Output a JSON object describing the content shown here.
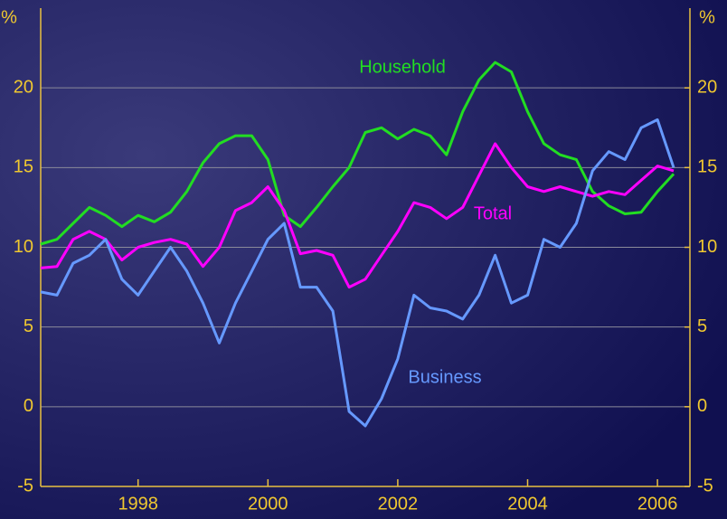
{
  "chart_data": {
    "type": "line",
    "ylabel": "%",
    "y2label": "%",
    "x": [
      1996.5,
      1996.75,
      1997,
      1997.25,
      1997.5,
      1997.75,
      1998,
      1998.25,
      1998.5,
      1998.75,
      1999,
      1999.25,
      1999.5,
      1999.75,
      2000,
      2000.25,
      2000.5,
      2000.75,
      2001,
      2001.25,
      2001.5,
      2001.75,
      2002,
      2002.25,
      2002.5,
      2002.75,
      2003,
      2003.25,
      2003.5,
      2003.75,
      2004,
      2004.25,
      2004.5,
      2004.75,
      2005,
      2005.25,
      2005.5,
      2005.75,
      2006,
      2006.25
    ],
    "series": [
      {
        "name": "Household",
        "color": "#22dd22",
        "values": [
          10.2,
          10.5,
          11.5,
          12.5,
          12.0,
          11.3,
          12.0,
          11.6,
          12.2,
          13.5,
          15.3,
          16.5,
          17.0,
          17.0,
          15.5,
          12.0,
          11.3,
          12.5,
          13.8,
          15.0,
          17.2,
          17.5,
          16.8,
          17.4,
          17.0,
          15.8,
          18.5,
          20.5,
          21.6,
          21.0,
          18.5,
          16.5,
          15.8,
          15.5,
          13.5,
          12.6,
          12.1,
          12.2,
          13.5,
          14.6
        ]
      },
      {
        "name": "Total",
        "color": "#ff00ff",
        "values": [
          8.7,
          8.8,
          10.5,
          11.0,
          10.5,
          9.2,
          10.0,
          10.3,
          10.5,
          10.2,
          8.8,
          10.0,
          12.3,
          12.8,
          13.8,
          12.3,
          9.6,
          9.8,
          9.5,
          7.5,
          8.0,
          9.5,
          11.0,
          12.8,
          12.5,
          11.8,
          12.5,
          14.5,
          16.5,
          15.0,
          13.8,
          13.5,
          13.8,
          13.5,
          13.2,
          13.5,
          13.3,
          14.2,
          15.1,
          14.8
        ]
      },
      {
        "name": "Business",
        "color": "#6699ff",
        "values": [
          7.2,
          7.0,
          9.0,
          9.5,
          10.5,
          8.0,
          7.0,
          8.5,
          10.0,
          8.5,
          6.5,
          4.0,
          6.5,
          8.5,
          10.5,
          11.5,
          7.5,
          7.5,
          6.0,
          -0.3,
          -1.2,
          0.5,
          3.0,
          7.0,
          6.2,
          6.0,
          5.5,
          7.0,
          9.5,
          6.5,
          7.0,
          10.5,
          10.0,
          11.5,
          14.8,
          16.0,
          15.5,
          17.5,
          18.0,
          15.0
        ]
      }
    ],
    "xlim": [
      1996.5,
      2006.5
    ],
    "xticks": [
      1998,
      2000,
      2002,
      2004,
      2006
    ],
    "ylim": [
      -5,
      25
    ],
    "yticks": [
      -5,
      0,
      5,
      10,
      15,
      20
    ],
    "y2lim": [
      -5,
      25
    ],
    "y2ticks": [
      -5,
      0,
      5,
      10,
      15,
      20
    ],
    "grid": true
  }
}
